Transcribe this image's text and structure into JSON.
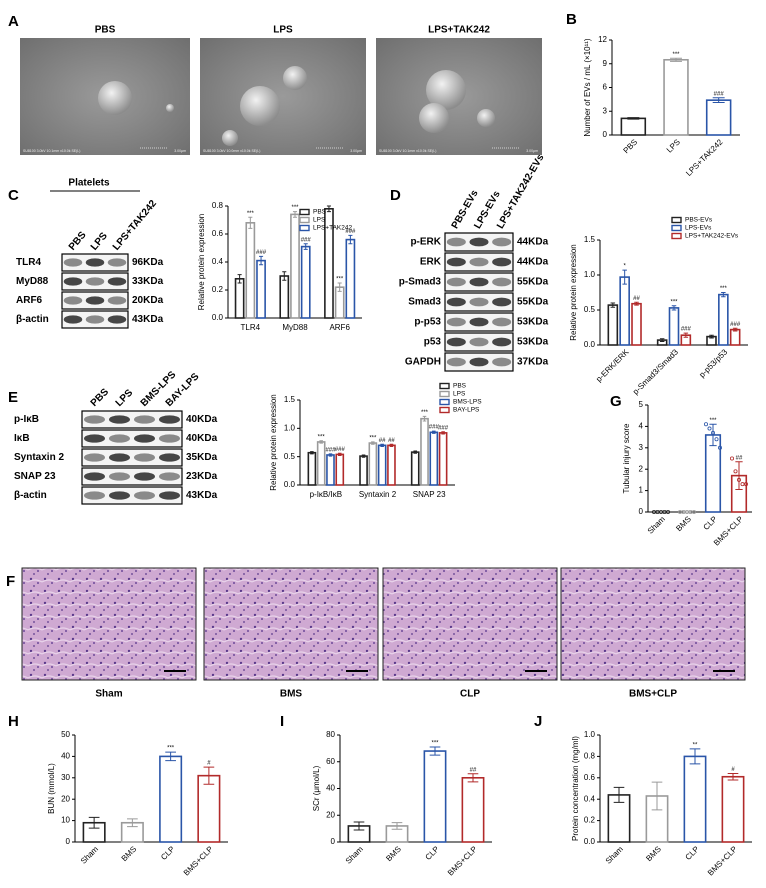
{
  "panel_labels": [
    "A",
    "B",
    "C",
    "D",
    "E",
    "F",
    "G",
    "H",
    "I",
    "J"
  ],
  "sem_images": {
    "captions": [
      "PBS",
      "LPS",
      "LPS+TAK242"
    ],
    "info": [
      "SU8100 3.0kV 10.1mm x10.0k SE(L)",
      "SU8100 3.0kV 10.0mm x10.0k SE(L)",
      "SU8100 3.0kV 10.1mm x10.0k SE(L)"
    ],
    "scale": "3.00μm"
  },
  "blots": [
    {
      "title": "Platelets",
      "lanes": [
        "PBS",
        "LPS",
        "LPS+TAK242"
      ],
      "rows": [
        {
          "name": "TLR4",
          "size": "96KDa"
        },
        {
          "name": "MyD88",
          "size": "33KDa"
        },
        {
          "name": "ARF6",
          "size": "20KDa"
        },
        {
          "name": "β-actin",
          "size": "43KDa"
        }
      ]
    },
    {
      "lanes": [
        "PBS-EVs",
        "LPS-EVs",
        "LPS+TAK242-EVs"
      ],
      "rows": [
        {
          "name": "p-ERK",
          "size": "44KDa"
        },
        {
          "name": "ERK",
          "size": "44KDa"
        },
        {
          "name": "p-Smad3",
          "size": "55KDa"
        },
        {
          "name": "Smad3",
          "size": "55KDa"
        },
        {
          "name": "p-p53",
          "size": "53KDa"
        },
        {
          "name": "p53",
          "size": "53KDa"
        },
        {
          "name": "GAPDH",
          "size": "37KDa"
        }
      ]
    },
    {
      "lanes": [
        "PBS",
        "LPS",
        "BMS-LPS",
        "BAY-LPS"
      ],
      "rows": [
        {
          "name": "p-IκB",
          "size": "40KDa"
        },
        {
          "name": "IκB",
          "size": "40KDa"
        },
        {
          "name": "Syntaxin 2",
          "size": "35KDa"
        },
        {
          "name": "SNAP 23",
          "size": "23KDa"
        },
        {
          "name": "β-actin",
          "size": "43KDa"
        }
      ]
    }
  ],
  "histology": {
    "captions": [
      "Sham",
      "BMS",
      "CLP",
      "BMS+CLP"
    ]
  },
  "chart_data": [
    {
      "type": "bar",
      "ylabel": "Number of EVs / mL (×10¹¹)",
      "categories": [
        "PBS",
        "LPS",
        "LPS+TAK242"
      ],
      "values": [
        2.1,
        9.5,
        4.4
      ],
      "errors": [
        0.1,
        0.2,
        0.3
      ],
      "annotations": [
        null,
        "***",
        "###"
      ],
      "colors": [
        "#222222",
        "#9a9a9a",
        "#2a55a8"
      ],
      "ylim": [
        0,
        12
      ],
      "yticks": [
        0,
        3,
        6,
        9,
        12
      ]
    },
    {
      "type": "bar",
      "ylabel": "Relative protein expression",
      "categories": [
        "TLR4",
        "MyD88",
        "ARF6"
      ],
      "series": [
        {
          "name": "PBS",
          "color": "#222222",
          "values": [
            0.28,
            0.3,
            0.78
          ],
          "errors": [
            0.03,
            0.03,
            0.02
          ]
        },
        {
          "name": "LPS",
          "color": "#9a9a9a",
          "values": [
            0.68,
            0.74,
            0.22
          ],
          "errors": [
            0.04,
            0.02,
            0.03
          ],
          "annotations": [
            "***",
            "***",
            "***"
          ]
        },
        {
          "name": "LPS+TAK242",
          "color": "#2a55a8",
          "values": [
            0.41,
            0.51,
            0.56
          ],
          "errors": [
            0.03,
            0.02,
            0.03
          ],
          "annotations": [
            "###",
            "###",
            "###"
          ]
        }
      ],
      "ylim": [
        0,
        0.8
      ],
      "yticks": [
        {
          "value": 0,
          "label": "0.0"
        },
        0.2,
        0.4,
        0.6,
        0.8
      ]
    },
    {
      "type": "bar",
      "ylabel": "Relative protein expression",
      "categories": [
        "p-ERK/ERK",
        "p-Smad3/Smad3",
        "p-p53/p53"
      ],
      "series": [
        {
          "name": "PBS-EVs",
          "color": "#222222",
          "values": [
            0.57,
            0.07,
            0.12
          ],
          "errors": [
            0.03,
            0.02,
            0.02
          ]
        },
        {
          "name": "LPS-EVs",
          "color": "#2a55a8",
          "values": [
            0.97,
            0.53,
            0.72
          ],
          "errors": [
            0.1,
            0.03,
            0.03
          ],
          "annotations": [
            "*",
            "***",
            "***"
          ]
        },
        {
          "name": "LPS+TAK242-EVs",
          "color": "#b22a2a",
          "values": [
            0.59,
            0.14,
            0.22
          ],
          "errors": [
            0.02,
            0.03,
            0.02
          ],
          "annotations": [
            "##",
            "###",
            "###"
          ]
        }
      ],
      "ylim": [
        0,
        1.5
      ],
      "yticks": [
        {
          "value": 0,
          "label": "0.0"
        },
        0.5,
        {
          "value": 1,
          "label": "1.0"
        },
        1.5
      ]
    },
    {
      "type": "bar",
      "ylabel": "Relative protein expression",
      "categories": [
        "p-IκB/IκB",
        "Syntaxin 2",
        "SNAP 23"
      ],
      "series": [
        {
          "name": "PBS",
          "color": "#222222",
          "values": [
            0.57,
            0.51,
            0.58
          ],
          "errors": [
            0.02,
            0.02,
            0.02
          ]
        },
        {
          "name": "LPS",
          "color": "#9a9a9a",
          "values": [
            0.76,
            0.74,
            1.17
          ],
          "errors": [
            0.02,
            0.02,
            0.04
          ],
          "annotations": [
            "***",
            "***",
            "***"
          ]
        },
        {
          "name": "BMS-LPS",
          "color": "#2a55a8",
          "values": [
            0.53,
            0.7,
            0.93
          ],
          "errors": [
            0.02,
            0.02,
            0.02
          ],
          "annotations": [
            "###",
            "##",
            "###"
          ]
        },
        {
          "name": "BAY-LPS",
          "color": "#b22a2a",
          "values": [
            0.54,
            0.7,
            0.92
          ],
          "errors": [
            0.02,
            0.02,
            0.02
          ],
          "annotations": [
            "###",
            "##",
            "###"
          ]
        }
      ],
      "ylim": [
        0,
        1.5
      ],
      "yticks": [
        {
          "value": 0,
          "label": "0.0"
        },
        0.5,
        {
          "value": 1,
          "label": "1.0"
        },
        1.5
      ]
    },
    {
      "type": "bar",
      "ylabel": "Tubular injury score",
      "categories": [
        "Sham",
        "BMS",
        "CLP",
        "BMS+CLP"
      ],
      "values": [
        0,
        0,
        3.6,
        1.7
      ],
      "errors": [
        0,
        0,
        0.5,
        0.65
      ],
      "annotations": [
        null,
        null,
        "***",
        "##"
      ],
      "points": [
        [
          0,
          0,
          0,
          0,
          0
        ],
        [
          0,
          0,
          0,
          0,
          0
        ],
        [
          4.1,
          3.9,
          3.7,
          3.4,
          3.0
        ],
        [
          2.5,
          1.9,
          1.5,
          1.3,
          1.3
        ]
      ],
      "colors": [
        "#222222",
        "#9a9a9a",
        "#2a55a8",
        "#b22a2a"
      ],
      "ylim": [
        0,
        5
      ],
      "yticks": [
        0,
        1,
        2,
        3,
        4,
        5
      ]
    },
    {
      "type": "bar",
      "ylabel": "BUN (mmol/L)",
      "categories": [
        "Sham",
        "BMS",
        "CLP",
        "BMS+CLP"
      ],
      "values": [
        9,
        9,
        40,
        31
      ],
      "errors": [
        2.5,
        1.8,
        2,
        4
      ],
      "annotations": [
        null,
        null,
        "***",
        "#"
      ],
      "colors": [
        "#222222",
        "#9a9a9a",
        "#2a55a8",
        "#b22a2a"
      ],
      "ylim": [
        0,
        50
      ],
      "yticks": [
        0,
        10,
        20,
        30,
        40,
        50
      ]
    },
    {
      "type": "bar",
      "ylabel": "SCr (μmol/L)",
      "categories": [
        "Sham",
        "BMS",
        "CLP",
        "BMS+CLP"
      ],
      "values": [
        12,
        12,
        68,
        48
      ],
      "errors": [
        3,
        2.5,
        3,
        3
      ],
      "annotations": [
        null,
        null,
        "***",
        "##"
      ],
      "colors": [
        "#222222",
        "#9a9a9a",
        "#2a55a8",
        "#b22a2a"
      ],
      "ylim": [
        0,
        80
      ],
      "yticks": [
        0,
        20,
        40,
        60,
        80
      ]
    },
    {
      "type": "bar",
      "ylabel": "Protein concentration (mg/ml)",
      "categories": [
        "Sham",
        "BMS",
        "CLP",
        "BMS+CLP"
      ],
      "values": [
        0.44,
        0.43,
        0.8,
        0.61
      ],
      "errors": [
        0.07,
        0.13,
        0.07,
        0.03
      ],
      "annotations": [
        null,
        null,
        "**",
        "#"
      ],
      "colors": [
        "#222222",
        "#9a9a9a",
        "#2a55a8",
        "#b22a2a"
      ],
      "ylim": [
        0,
        1
      ],
      "yticks": [
        {
          "value": 0,
          "label": "0.0"
        },
        0.2,
        0.4,
        0.6,
        0.8,
        {
          "value": 1,
          "label": "1.0"
        }
      ]
    }
  ]
}
